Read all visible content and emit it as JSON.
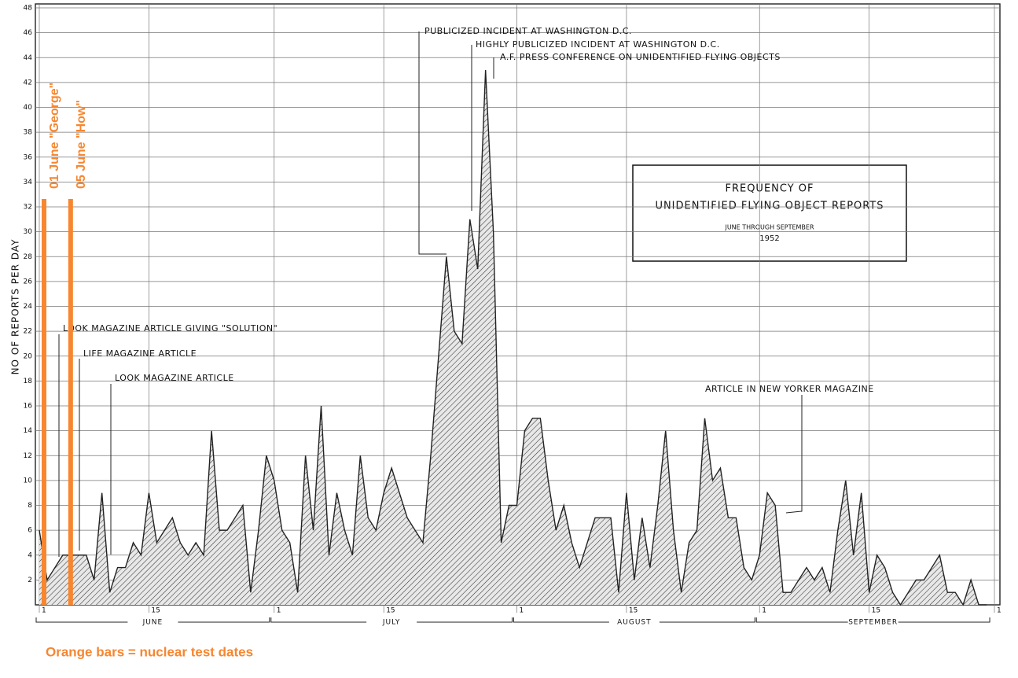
{
  "chart_data": {
    "type": "area",
    "box_title": [
      "FREQUENCY OF",
      "UNIDENTIFIED FLYING OBJECT REPORTS"
    ],
    "box_subtitle": [
      "JUNE THROUGH SEPTEMBER",
      "1952"
    ],
    "y_label": "NO OF REPORTS PER DAY",
    "color": "#222222",
    "grid": true,
    "x": [
      1,
      2,
      3,
      4,
      5,
      6,
      7,
      8,
      9,
      10,
      11,
      12,
      13,
      14,
      15,
      16,
      17,
      18,
      19,
      20,
      21,
      22,
      23,
      24,
      25,
      26,
      27,
      28,
      29,
      30,
      31,
      32,
      33,
      34,
      35,
      36,
      37,
      38,
      39,
      40,
      41,
      42,
      43,
      44,
      45,
      46,
      47,
      48,
      49,
      50,
      51,
      52,
      53,
      54,
      55,
      56,
      57,
      58,
      59,
      60,
      61,
      62,
      63,
      64,
      65,
      66,
      67,
      68,
      69,
      70,
      71,
      72,
      73,
      74,
      75,
      76,
      77,
      78,
      79,
      80,
      81,
      82,
      83,
      84,
      85,
      86,
      87,
      88,
      89,
      90,
      91,
      92,
      93,
      94,
      95,
      96,
      97,
      98,
      99,
      100,
      101,
      102,
      103,
      104,
      105,
      106,
      107,
      108,
      109,
      110,
      111,
      112,
      113,
      114,
      115,
      116,
      117,
      118,
      119,
      120,
      121,
      122
    ],
    "values": [
      6,
      2,
      3,
      4,
      4,
      4,
      4,
      2,
      9,
      1,
      3,
      3,
      5,
      4,
      9,
      5,
      6,
      7,
      5,
      4,
      5,
      4,
      14,
      6,
      6,
      7,
      8,
      1,
      6,
      12,
      10,
      6,
      5,
      1,
      12,
      6,
      16,
      4,
      9,
      6,
      4,
      12,
      7,
      6,
      9,
      11,
      9,
      7,
      6,
      5,
      12,
      20,
      28,
      22,
      21,
      31,
      27,
      43,
      30,
      5,
      8,
      8,
      14,
      15,
      15,
      10,
      6,
      8,
      5,
      3,
      5,
      7,
      7,
      7,
      1,
      9,
      2,
      7,
      3,
      8,
      14,
      6,
      1,
      5,
      6,
      15,
      10,
      11,
      7,
      7,
      3,
      2,
      4,
      9,
      8,
      1,
      1,
      2,
      3,
      2,
      3,
      1,
      6,
      10,
      4,
      9,
      1,
      4,
      3,
      1,
      0,
      1,
      2,
      2,
      3,
      4,
      1,
      1,
      0,
      2,
      0,
      0
    ],
    "xlim": [
      1,
      123
    ],
    "xticks": [
      {
        "value": 1,
        "label": "1"
      },
      {
        "value": 15,
        "label": "15"
      },
      {
        "value": 31,
        "label": "1"
      },
      {
        "value": 45,
        "label": "15"
      },
      {
        "value": 62,
        "label": "1"
      },
      {
        "value": 76,
        "label": "15"
      },
      {
        "value": 93,
        "label": "1"
      },
      {
        "value": 107,
        "label": "15"
      },
      {
        "value": 123,
        "label": "1"
      }
    ],
    "ylim": [
      0,
      48
    ],
    "yticks": [
      2,
      4,
      6,
      8,
      10,
      12,
      14,
      16,
      18,
      20,
      22,
      24,
      26,
      28,
      30,
      32,
      34,
      36,
      38,
      40,
      42,
      44,
      46,
      48
    ],
    "months": [
      {
        "label": "JUNE",
        "start": 1,
        "end": 30
      },
      {
        "label": "JULY",
        "start": 31,
        "end": 61
      },
      {
        "label": "AUGUST",
        "start": 62,
        "end": 92
      },
      {
        "label": "SEPTEMBER",
        "start": 93,
        "end": 122
      }
    ],
    "annotations": [
      "PUBLICIZED INCIDENT AT WASHINGTON D.C.",
      "HIGHLY PUBLICIZED INCIDENT AT WASHINGTON D.C.",
      "A.F. PRESS CONFERENCE ON UNIDENTIFIED FLYING OBJECTS",
      "LOOK MAGAZINE ARTICLE GIVING \"SOLUTION\"",
      "LIFE MAGAZINE ARTICLE",
      "LOOK MAGAZINE ARTICLE",
      "ARTICLE IN NEW YORKER MAGAZINE"
    ],
    "events": [
      {
        "label": "01 June \"George\"",
        "x": 1
      },
      {
        "label": "05 June \"How\"",
        "x": 5
      }
    ],
    "event_color": "#f7862f",
    "event_note": "Orange bars = nuclear test dates"
  }
}
